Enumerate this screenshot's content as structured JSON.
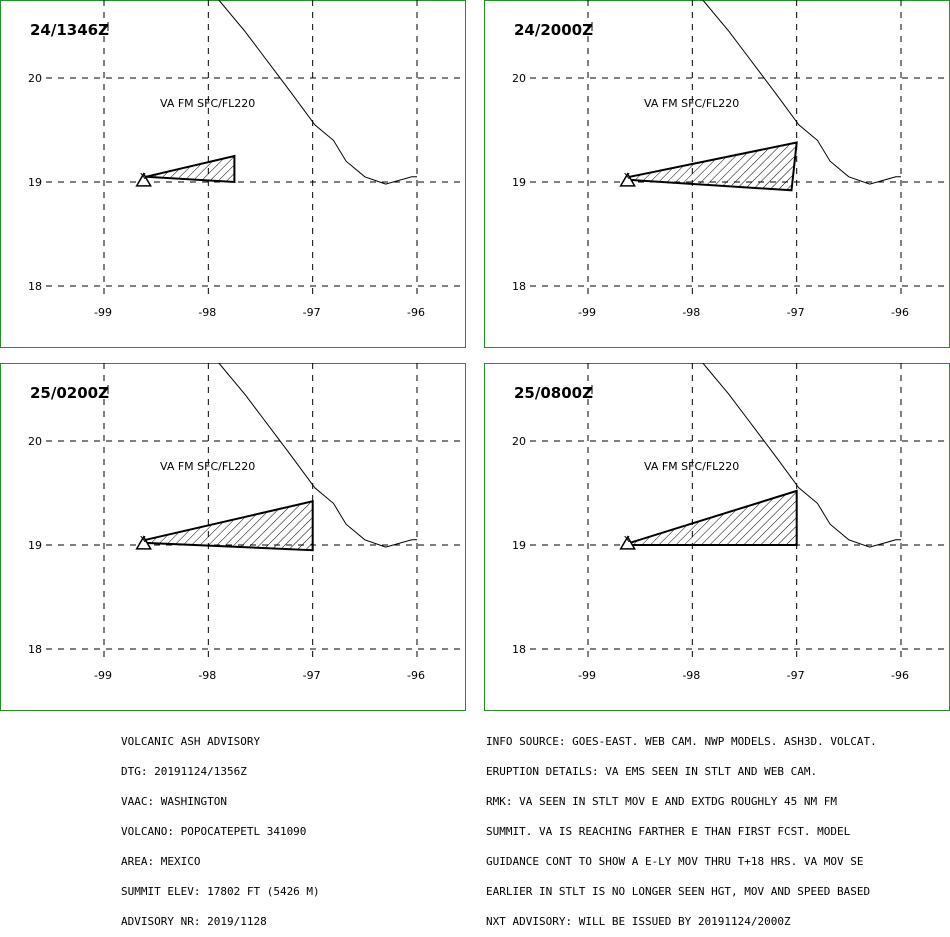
{
  "panels": [
    {
      "time": "24/1346Z",
      "label": "VA FM SFC/FL220",
      "polygon": [
        [
          -98.6,
          19.05
        ],
        [
          -97.75,
          19.25
        ],
        [
          -97.75,
          19.0
        ],
        [
          -98.6,
          19.05
        ]
      ]
    },
    {
      "time": "24/2000Z",
      "label": "VA FM SFC/FL220",
      "polygon": [
        [
          -98.6,
          19.05
        ],
        [
          -97.0,
          19.38
        ],
        [
          -97.05,
          18.92
        ],
        [
          -98.6,
          19.02
        ]
      ]
    },
    {
      "time": "25/0200Z",
      "label": "VA FM SFC/FL220",
      "polygon": [
        [
          -98.6,
          19.05
        ],
        [
          -97.0,
          19.42
        ],
        [
          -97.0,
          18.95
        ],
        [
          -98.6,
          19.02
        ]
      ]
    },
    {
      "time": "25/0800Z",
      "label": "VA FM SFC/FL220",
      "polygon": [
        [
          -98.6,
          19.02
        ],
        [
          -97.0,
          19.52
        ],
        [
          -97.0,
          19.0
        ],
        [
          -98.6,
          19.0
        ]
      ]
    }
  ],
  "axes": {
    "lon_ticks": [
      "-99",
      "-98",
      "-97",
      "-96"
    ],
    "lat_ticks": [
      "20",
      "19",
      "18"
    ]
  },
  "volcano": {
    "lon": -98.62,
    "lat": 19.02
  },
  "coastline": [
    [
      -98.08,
      20.96
    ],
    [
      -97.9,
      20.75
    ],
    [
      -97.65,
      20.45
    ],
    [
      -97.5,
      20.25
    ],
    [
      -97.35,
      20.05
    ],
    [
      -97.2,
      19.85
    ],
    [
      -96.98,
      19.55
    ],
    [
      -96.8,
      19.4
    ],
    [
      -96.68,
      19.2
    ],
    [
      -96.5,
      19.05
    ],
    [
      -96.3,
      18.98
    ],
    [
      -96.05,
      19.05
    ],
    [
      -96.0,
      19.05
    ]
  ],
  "advisory_left": [
    "VOLCANIC ASH ADVISORY",
    "DTG: 20191124/1356Z",
    "VAAC: WASHINGTON",
    "VOLCANO: POPOCATEPETL 341090",
    "AREA: MEXICO",
    "SUMMIT ELEV: 17802 FT (5426 M)",
    "ADVISORY NR: 2019/1128"
  ],
  "advisory_right": [
    "INFO SOURCE: GOES-EAST. WEB CAM. NWP MODELS. ASH3D. VOLCAT.",
    "ERUPTION DETAILS: VA EMS SEEN IN STLT AND WEB CAM.",
    "RMK: VA SEEN IN STLT MOV E AND EXTDG ROUGHLY 45 NM FM",
    "SUMMIT. VA IS REACHING FARTHER E THAN FIRST FCST. MODEL",
    "GUIDANCE CONT TO SHOW A E-LY MOV THRU T+18 HRS. VA MOV SE",
    "EARLIER IN STLT IS NO LONGER SEEN HGT, MOV AND SPEED BASED",
    "NXT ADVISORY: WILL BE ISSUED BY 20191124/2000Z"
  ],
  "colors": {
    "border": "#2f8a2f",
    "grid": "#000000",
    "ash_fill": "#ffffff"
  }
}
